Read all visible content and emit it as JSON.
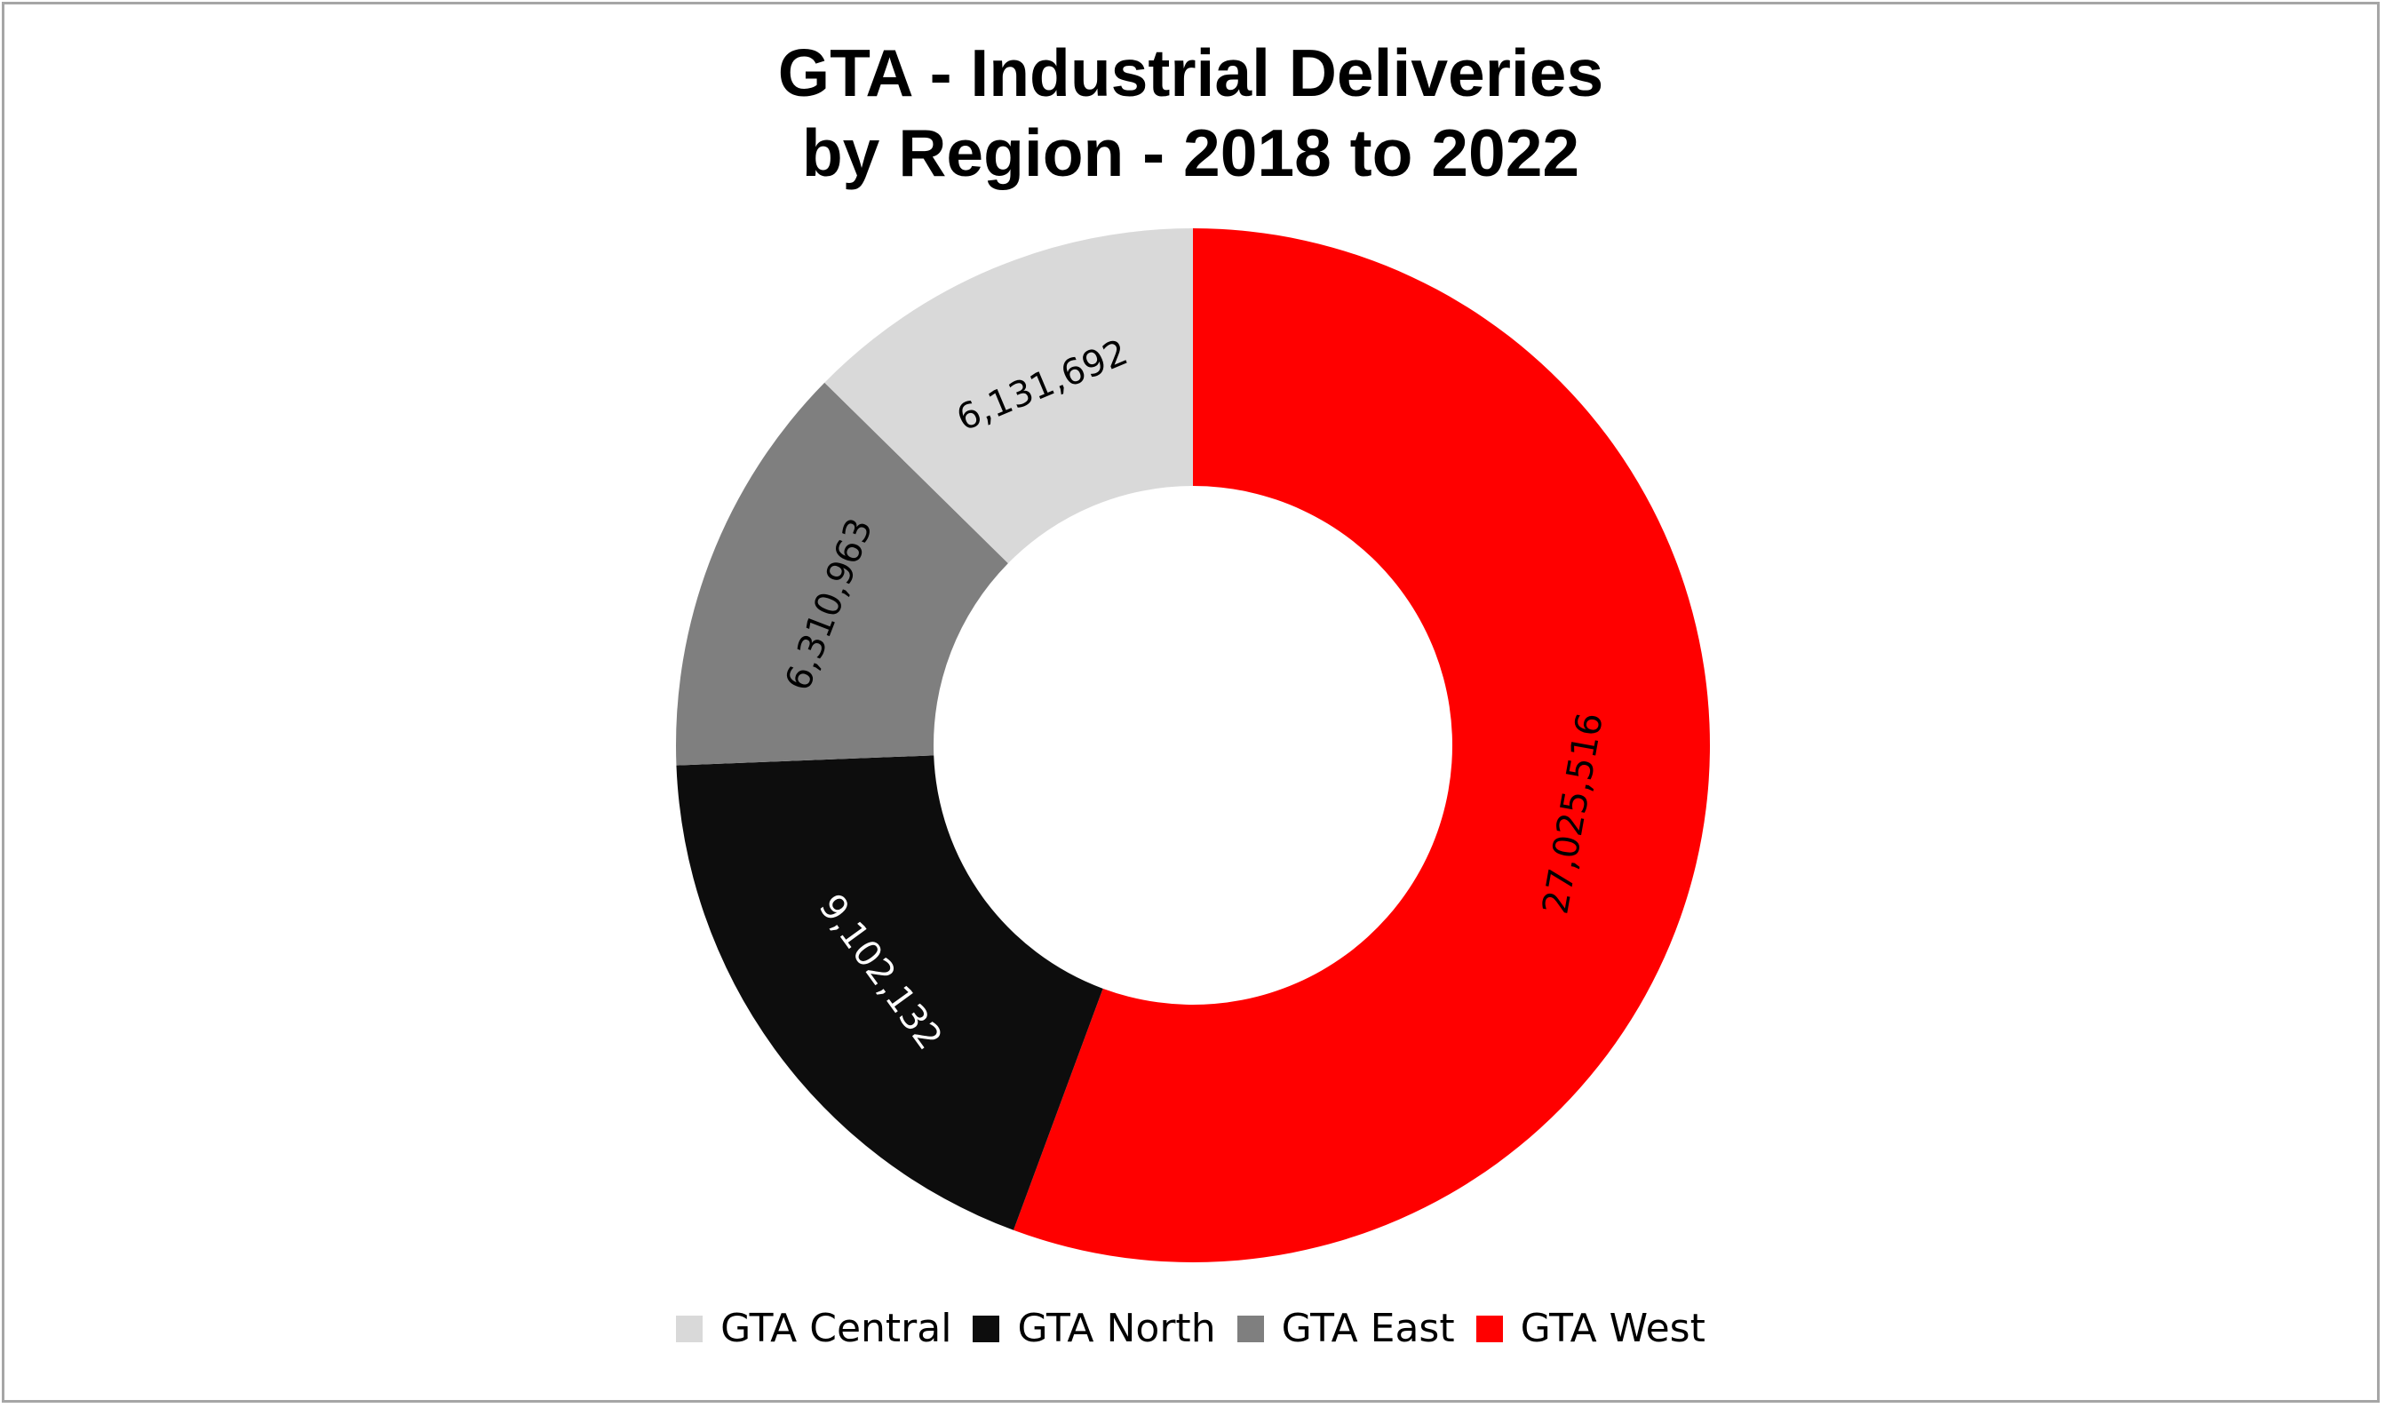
{
  "chart_data": {
    "type": "pie",
    "variant": "donut",
    "title": [
      "GTA - Industrial Deliveries",
      "by Region - 2018 to 2022"
    ],
    "legend_position": "bottom",
    "slices": [
      {
        "name": "GTA Central",
        "value": 6131692,
        "label": "6,131,692",
        "color": "#d9d9d9",
        "label_color": "#000000"
      },
      {
        "name": "GTA North",
        "value": 9102132,
        "label": "9,102,132",
        "color": "#0d0d0d",
        "label_color": "#ffffff"
      },
      {
        "name": "GTA East",
        "value": 6310963,
        "label": "6,310,963",
        "color": "#7f7f7f",
        "label_color": "#000000"
      },
      {
        "name": "GTA West",
        "value": 27025516,
        "label": "27,025,516",
        "color": "#ff0000",
        "label_color": "#000000"
      }
    ],
    "draw_order": [
      "GTA West",
      "GTA North",
      "GTA East",
      "GTA Central"
    ],
    "start": "12 o'clock",
    "direction": "clockwise"
  }
}
